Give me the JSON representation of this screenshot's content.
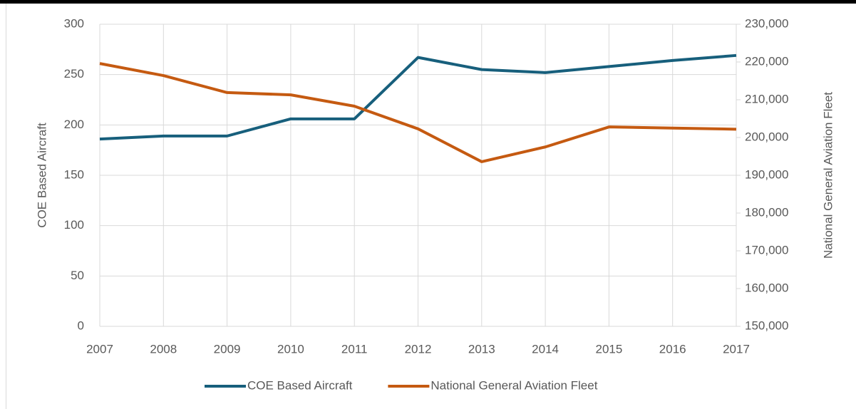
{
  "chart_data": {
    "type": "line",
    "x": [
      2007,
      2008,
      2009,
      2010,
      2011,
      2012,
      2013,
      2014,
      2015,
      2016,
      2017
    ],
    "series": [
      {
        "name": "COE Based Aircraft",
        "color": "#175f7c",
        "values": [
          186,
          189,
          189,
          206,
          206,
          267,
          255,
          252,
          258,
          264,
          269
        ]
      },
      {
        "name": "National General Aviation Fleet",
        "color": "#c55a11",
        "axis": "y2",
        "values": [
          219600,
          216400,
          211900,
          211300,
          208300,
          202300,
          193600,
          197500,
          202800,
          202500,
          202200
        ]
      }
    ],
    "xlim": [
      2007,
      2017
    ],
    "xticks": [
      2007,
      2008,
      2009,
      2010,
      2011,
      2012,
      2013,
      2014,
      2015,
      2016,
      2017
    ],
    "ylim": [
      0,
      300
    ],
    "yticks": [
      0,
      50,
      100,
      150,
      200,
      250,
      300
    ],
    "y2lim": [
      150000,
      230000
    ],
    "y2ticks": [
      {
        "value": 150000,
        "label": "150,000"
      },
      {
        "value": 160000,
        "label": "160,000"
      },
      {
        "value": 170000,
        "label": "170,000"
      },
      {
        "value": 180000,
        "label": "180,000"
      },
      {
        "value": 190000,
        "label": "190,000"
      },
      {
        "value": 200000,
        "label": "200,000"
      },
      {
        "value": 210000,
        "label": "210,000"
      },
      {
        "value": 220000,
        "label": "220,000"
      },
      {
        "value": 230000,
        "label": "230,000"
      }
    ],
    "ylabel": "COE Based Aircraft",
    "y2label": "National General Aviation Fleet",
    "grid": true,
    "legend": "bottom"
  }
}
